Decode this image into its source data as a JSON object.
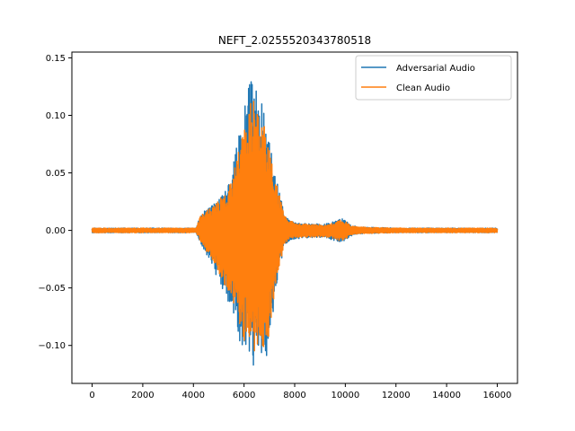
{
  "chart_data": {
    "type": "line",
    "title": "NEFT_2.0255520343780518",
    "xlabel": "",
    "ylabel": "",
    "xlim": [
      -800,
      16800
    ],
    "ylim": [
      -0.133,
      0.155
    ],
    "x_ticks": [
      0,
      2000,
      4000,
      6000,
      8000,
      10000,
      12000,
      14000,
      16000
    ],
    "y_ticks": [
      -0.1,
      -0.05,
      0.0,
      0.05,
      0.1,
      0.15
    ],
    "y_tick_labels": [
      "−0.10",
      "−0.05",
      "0.00",
      "0.05",
      "0.10",
      "0.15"
    ],
    "grid": false,
    "legend_position": "top-right",
    "series": [
      {
        "name": "Adversarial Audio",
        "color": "#1f77b4",
        "x_range": [
          0,
          16000
        ],
        "envelope": [
          [
            0,
            0.002,
            -0.002
          ],
          [
            4100,
            0.002,
            -0.002
          ],
          [
            4250,
            0.013,
            -0.01
          ],
          [
            4500,
            0.018,
            -0.02
          ],
          [
            4750,
            0.022,
            -0.03
          ],
          [
            5000,
            0.03,
            -0.045
          ],
          [
            5250,
            0.035,
            -0.055
          ],
          [
            5500,
            0.045,
            -0.07
          ],
          [
            5700,
            0.075,
            -0.085
          ],
          [
            5900,
            0.09,
            -0.108
          ],
          [
            6100,
            0.118,
            -0.1
          ],
          [
            6350,
            0.14,
            -0.12
          ],
          [
            6600,
            0.12,
            -0.105
          ],
          [
            6850,
            0.095,
            -0.115
          ],
          [
            7100,
            0.065,
            -0.085
          ],
          [
            7350,
            0.038,
            -0.04
          ],
          [
            7600,
            0.015,
            -0.013
          ],
          [
            7850,
            0.008,
            -0.008
          ],
          [
            8200,
            0.006,
            -0.007
          ],
          [
            8800,
            0.006,
            -0.006
          ],
          [
            9300,
            0.006,
            -0.007
          ],
          [
            9600,
            0.008,
            -0.009
          ],
          [
            9750,
            0.011,
            -0.01
          ],
          [
            10000,
            0.009,
            -0.009
          ],
          [
            10200,
            0.005,
            -0.005
          ],
          [
            10500,
            0.003,
            -0.003
          ],
          [
            12000,
            0.002,
            -0.002
          ],
          [
            16000,
            0.002,
            -0.002
          ]
        ]
      },
      {
        "name": "Clean Audio",
        "color": "#ff7f0e",
        "x_range": [
          0,
          16000
        ],
        "envelope": [
          [
            0,
            0.002,
            -0.002
          ],
          [
            4100,
            0.002,
            -0.002
          ],
          [
            4250,
            0.012,
            -0.008
          ],
          [
            4500,
            0.017,
            -0.018
          ],
          [
            4750,
            0.02,
            -0.026
          ],
          [
            5000,
            0.027,
            -0.038
          ],
          [
            5250,
            0.032,
            -0.048
          ],
          [
            5500,
            0.042,
            -0.06
          ],
          [
            5700,
            0.068,
            -0.076
          ],
          [
            5900,
            0.082,
            -0.098
          ],
          [
            6100,
            0.108,
            -0.095
          ],
          [
            6350,
            0.115,
            -0.11
          ],
          [
            6600,
            0.11,
            -0.098
          ],
          [
            6850,
            0.088,
            -0.105
          ],
          [
            7100,
            0.06,
            -0.078
          ],
          [
            7350,
            0.035,
            -0.036
          ],
          [
            7600,
            0.014,
            -0.012
          ],
          [
            7850,
            0.008,
            -0.007
          ],
          [
            8200,
            0.006,
            -0.006
          ],
          [
            8800,
            0.005,
            -0.006
          ],
          [
            9300,
            0.005,
            -0.006
          ],
          [
            9600,
            0.007,
            -0.008
          ],
          [
            9750,
            0.009,
            -0.009
          ],
          [
            10000,
            0.008,
            -0.008
          ],
          [
            10200,
            0.004,
            -0.004
          ],
          [
            10500,
            0.003,
            -0.003
          ],
          [
            12000,
            0.002,
            -0.002
          ],
          [
            16000,
            0.002,
            -0.002
          ]
        ]
      }
    ]
  }
}
